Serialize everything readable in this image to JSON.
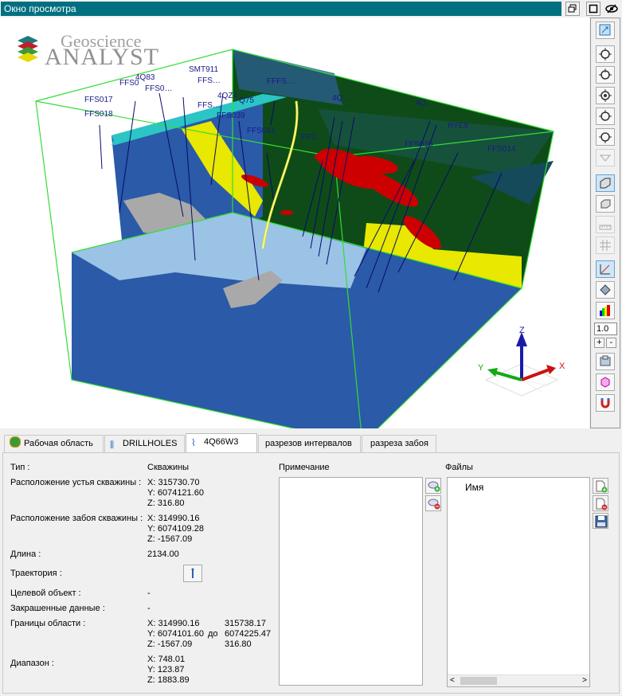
{
  "window": {
    "title": "Окно просмотра",
    "buttons": [
      "restore",
      "maximize",
      "visibility"
    ]
  },
  "logo": {
    "line1": "Geoscience",
    "line2": "ANALYST"
  },
  "scene": {
    "well_labels": [
      "SMT911",
      "FFS017",
      "FFS018",
      "4Q83",
      "FFS0",
      "4QZ4",
      "FFS041",
      "FFS014",
      "RYE9",
      "FFS036",
      "Q75",
      "FFS039"
    ],
    "axis_labels": {
      "x": "X",
      "y": "Y",
      "z": "Z"
    }
  },
  "toolbar": {
    "zoom_value": "1.0",
    "plus": "+",
    "minus": "-"
  },
  "tabs": [
    {
      "label": "Рабочая область",
      "icon": "workspace-icon"
    },
    {
      "label": "DRILLHOLES",
      "icon": "drillholes-icon"
    },
    {
      "label": "4Q66W3",
      "icon": "drillhole-icon"
    },
    {
      "label": "разрезов интервалов",
      "icon": ""
    },
    {
      "label": "разреза забоя",
      "icon": ""
    }
  ],
  "properties": {
    "type_label": "Тип :",
    "type_value": "Скважины",
    "collar_label": "Расположение устья скважины :",
    "collar": {
      "x": "X: 315730.70",
      "y": "Y: 6074121.60",
      "z": "Z: 316.80"
    },
    "toe_label": "Расположение забоя скважины :",
    "toe": {
      "x": "X: 314990.16",
      "y": "Y: 6074109.28",
      "z": "Z: -1567.09"
    },
    "length_label": "Длина :",
    "length_value": "2134.00",
    "trajectory_label": "Траектория :",
    "target_label": "Целевой объект :",
    "target_value": "-",
    "colored_label": "Закрашенные данные :",
    "colored_value": "-",
    "bounds_label": "Границы области :",
    "bounds_min": {
      "x": "X: 314990.16",
      "y": "Y: 6074101.60",
      "z": "Z: -1567.09"
    },
    "bounds_to": "до",
    "bounds_max": {
      "x": "315738.17",
      "y": "6074225.47",
      "z": "316.80"
    },
    "range_label": "Диапазон :",
    "range": {
      "x": "X: 748.01",
      "y": "Y: 123.87",
      "z": "Z: 1883.89"
    }
  },
  "notes": {
    "title": "Примечание"
  },
  "files": {
    "title": "Файлы",
    "column": "Имя"
  }
}
